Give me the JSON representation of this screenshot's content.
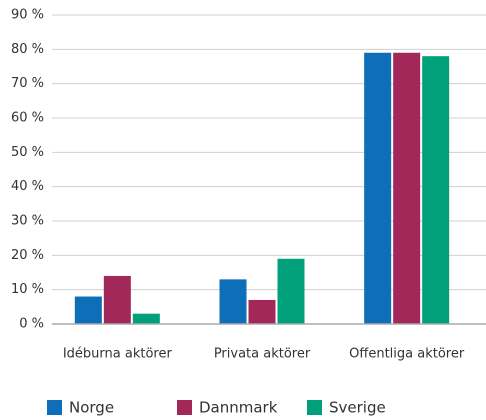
{
  "chart_data": {
    "type": "bar",
    "categories": [
      "Idéburna aktörer",
      "Privata aktörer",
      "Offentliga aktörer"
    ],
    "series": [
      {
        "name": "Norge",
        "color": "#0e6eb8",
        "values": [
          8,
          13,
          79
        ]
      },
      {
        "name": "Dannmark",
        "color": "#a3285a",
        "values": [
          14,
          7,
          79
        ]
      },
      {
        "name": "Sverige",
        "color": "#00a07a",
        "values": [
          3,
          19,
          78
        ]
      }
    ],
    "ylim": [
      0,
      90
    ],
    "yticks": [
      {
        "value": 0,
        "label": "0 %"
      },
      {
        "value": 10,
        "label": "10 %"
      },
      {
        "value": 20,
        "label": "20 %"
      },
      {
        "value": 30,
        "label": "30 %"
      },
      {
        "value": 40,
        "label": "40 %"
      },
      {
        "value": 50,
        "label": "50 %"
      },
      {
        "value": 60,
        "label": "60 %"
      },
      {
        "value": 70,
        "label": "70 %"
      },
      {
        "value": 80,
        "label": "80 %"
      },
      {
        "value": 90,
        "label": "90 %"
      }
    ],
    "grid": true,
    "legend": "bottom"
  }
}
